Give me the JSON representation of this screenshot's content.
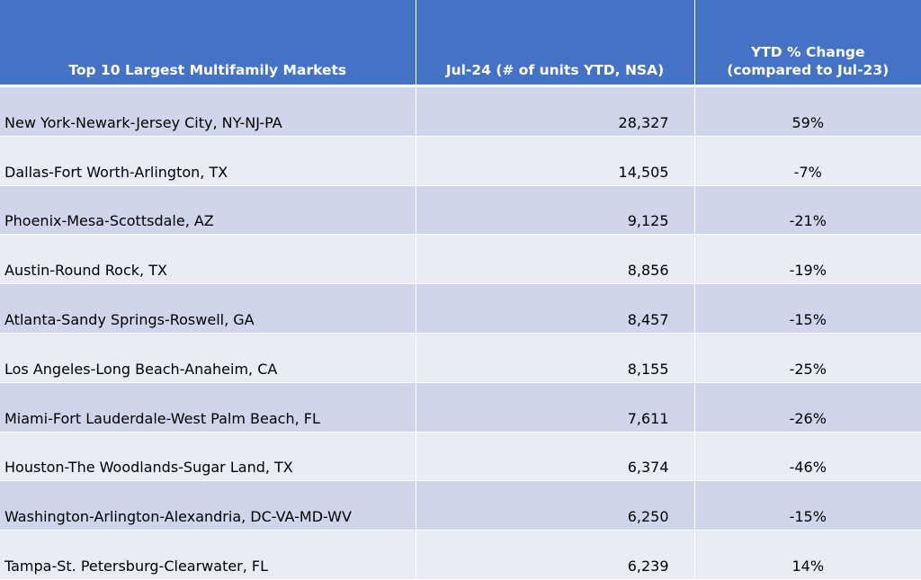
{
  "table": {
    "headers": {
      "market": "Top 10 Largest Multifamily Markets",
      "units": "Jul-24 (# of units YTD, NSA)",
      "change_line1": "YTD % Change",
      "change_line2": "(compared to Jul-23)"
    },
    "rows": [
      {
        "market": "New York-Newark-Jersey City, NY-NJ-PA",
        "units": "28,327",
        "change": "59%"
      },
      {
        "market": "Dallas-Fort Worth-Arlington, TX",
        "units": "14,505",
        "change": "-7%"
      },
      {
        "market": "Phoenix-Mesa-Scottsdale, AZ",
        "units": "9,125",
        "change": "-21%"
      },
      {
        "market": "Austin-Round Rock, TX",
        "units": "8,856",
        "change": "-19%"
      },
      {
        "market": "Atlanta-Sandy Springs-Roswell, GA",
        "units": "8,457",
        "change": "-15%"
      },
      {
        "market": "Los Angeles-Long Beach-Anaheim, CA",
        "units": "8,155",
        "change": "-25%"
      },
      {
        "market": "Miami-Fort Lauderdale-West Palm Beach, FL",
        "units": "7,611",
        "change": "-26%"
      },
      {
        "market": "Houston-The Woodlands-Sugar Land, TX",
        "units": "6,374",
        "change": "-46%"
      },
      {
        "market": "Washington-Arlington-Alexandria, DC-VA-MD-WV",
        "units": "6,250",
        "change": "-15%"
      },
      {
        "market": "Tampa-St. Petersburg-Clearwater, FL",
        "units": "6,239",
        "change": "14%"
      }
    ]
  },
  "colors": {
    "header_bg": "#4472c4",
    "row_odd": "#cfd5ea",
    "row_even": "#e9ebf5"
  }
}
